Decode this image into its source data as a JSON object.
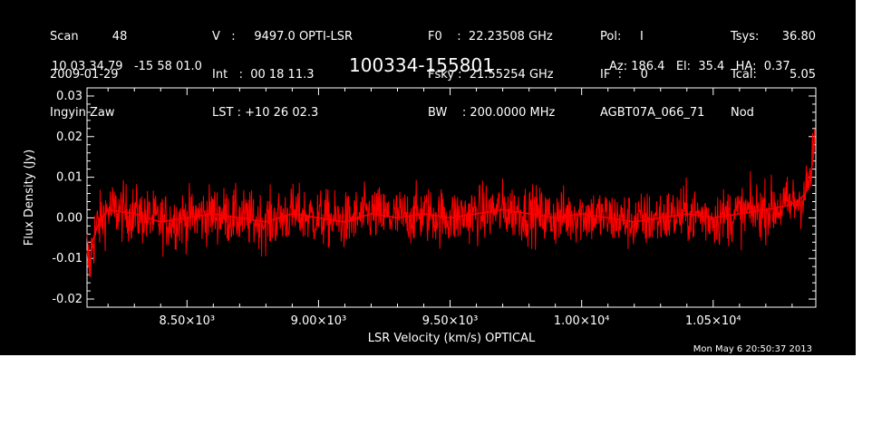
{
  "header": {
    "col1": [
      "Scan         48",
      "2009-01-29",
      "Ingyin Zaw"
    ],
    "col2": [
      "V   :     9497.0 OPTI-LSR",
      "Int   :  00 18 11.3",
      "LST : +10 26 02.3"
    ],
    "col3": [
      "F0    :  22.23508 GHz",
      "Fsky :  21.55254 GHz",
      "BW    : 200.0000 MHz"
    ],
    "col4": [
      "Pol:     I",
      "IF  :     0",
      "AGBT07A_066_71"
    ],
    "col5": [
      "Tsys:",
      "Tcal:",
      "Nod"
    ],
    "col5_values": [
      "36.80",
      "5.05",
      ""
    ],
    "coords": "10 03 34.79   -15 58 01.0",
    "source": "100334-155801",
    "azelha": "Az: 186.4   El:  35.4   HA:  0.37",
    "timestamp": "Mon May  6 20:50:37 2013"
  },
  "chart_data": {
    "type": "line",
    "title": "100334-155801",
    "xlabel": "LSR Velocity (km/s) OPTICAL",
    "ylabel": "Flux Density (Jy)",
    "xlim": [
      8120,
      10890
    ],
    "ylim": [
      -0.022,
      0.032
    ],
    "x_ticks": [
      8500,
      9000,
      9500,
      10000,
      10500
    ],
    "x_tick_labels": [
      "8.50×10³",
      "9.00×10³",
      "9.50×10³",
      "1.00×10⁴",
      "1.05×10⁴"
    ],
    "y_ticks": [
      -0.02,
      -0.01,
      0.0,
      0.01,
      0.02,
      0.03
    ],
    "y_tick_labels": [
      "-0.02",
      "-0.01",
      "0.00",
      "0.01",
      "0.02",
      "0.03"
    ],
    "series": [
      {
        "color": "#ff0000",
        "x": [
          8120,
          8130,
          8140,
          8160,
          8200,
          8300,
          8400,
          8500,
          8600,
          8700,
          8800,
          8900,
          9000,
          9100,
          9200,
          9300,
          9400,
          9500,
          9600,
          9700,
          9800,
          9900,
          10000,
          10100,
          10200,
          10300,
          10400,
          10500,
          10600,
          10700,
          10780,
          10820,
          10850,
          10870,
          10880,
          10885
        ],
        "y": [
          -0.008,
          -0.013,
          -0.006,
          -0.002,
          0.002,
          0.001,
          -0.001,
          0.0,
          0.001,
          0.0,
          -0.001,
          0.001,
          0.0,
          -0.001,
          0.001,
          0.0,
          0.001,
          0.0,
          0.001,
          0.002,
          0.001,
          0.0,
          0.001,
          0.0,
          -0.001,
          0.0,
          0.001,
          0.0,
          0.001,
          0.002,
          0.003,
          0.004,
          0.006,
          0.01,
          0.015,
          0.02
        ]
      }
    ]
  },
  "colors": {
    "background": "#000000",
    "foreground": "#ffffff",
    "series": "#ff0000"
  }
}
